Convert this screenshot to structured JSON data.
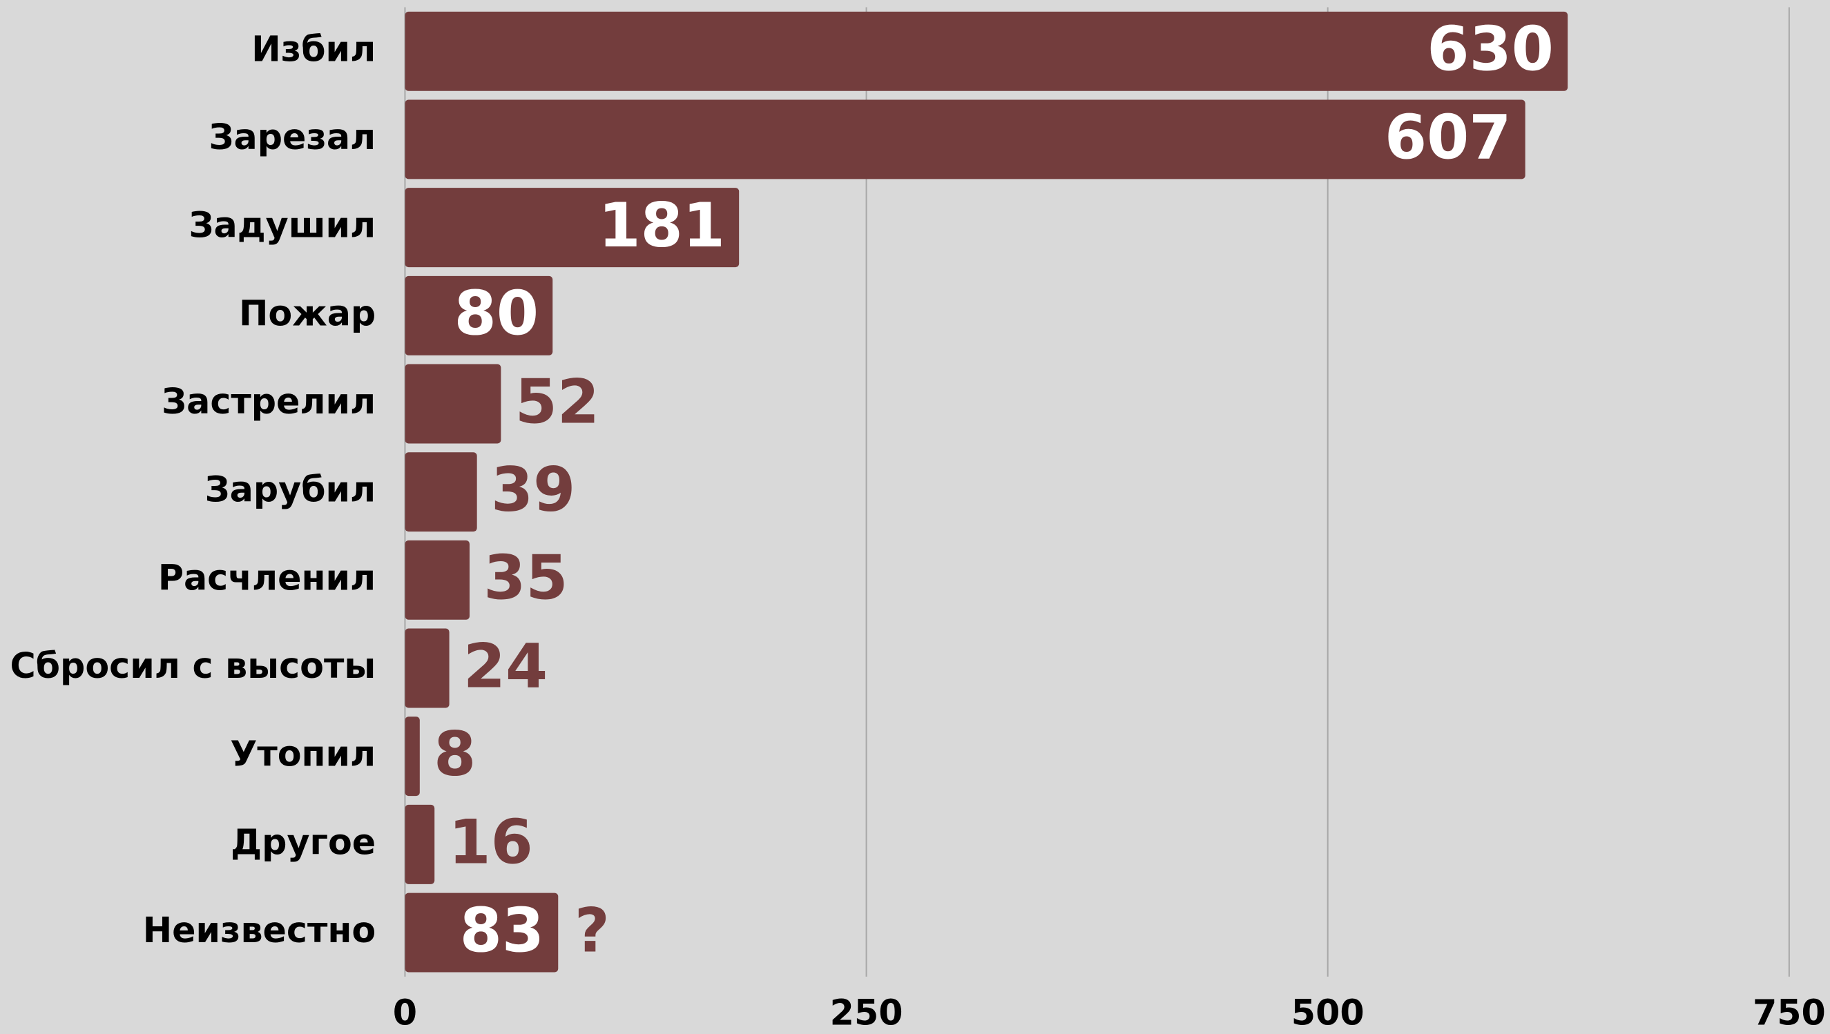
{
  "chart_data": {
    "type": "barh",
    "categories": [
      "Избил",
      "Зарезал",
      "Задушил",
      "Пожар",
      "Застрелил",
      "Зарубил",
      "Расчленил",
      "Сбросил с высоты",
      "Утопил",
      "Другое",
      "Неизвестно"
    ],
    "values": [
      630,
      607,
      181,
      80,
      52,
      39,
      35,
      24,
      8,
      16,
      83
    ],
    "color": "#733d3d",
    "xlim": [
      0,
      750
    ],
    "xticks": [
      0,
      250,
      500,
      750
    ],
    "grid": true,
    "unknown_marker": "?"
  }
}
